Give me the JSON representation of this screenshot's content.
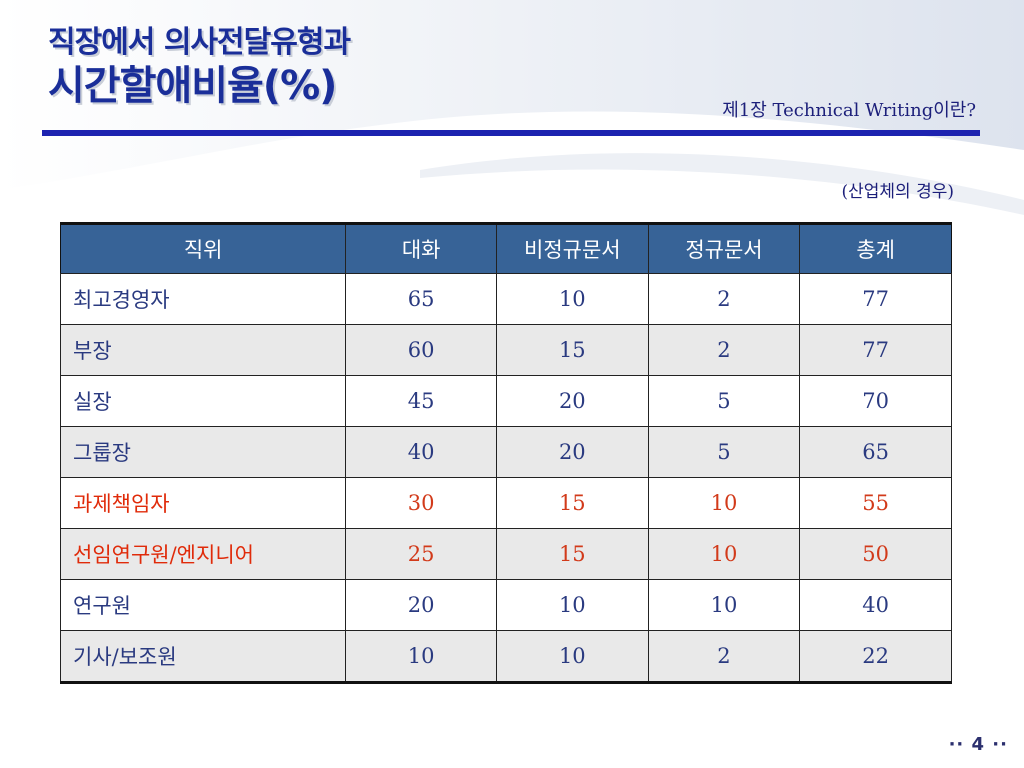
{
  "slide": {
    "title_line1": "직장에서 의사전달유형과",
    "title_line2": "시간할애비율(%)",
    "chapter": "제1장 Technical Writing이란?",
    "note": "(산업체의 경우)",
    "page_number": "·· 4 ··"
  },
  "table": {
    "headers": [
      "직위",
      "대화",
      "비정규문서",
      "정규문서",
      "총계"
    ],
    "rows": [
      [
        "최고경영자",
        "65",
        "10",
        "2",
        "77"
      ],
      [
        "부장",
        "60",
        "15",
        "2",
        "77"
      ],
      [
        "실장",
        "45",
        "20",
        "5",
        "70"
      ],
      [
        "그룹장",
        "40",
        "20",
        "5",
        "65"
      ],
      [
        "과제책임자",
        "30",
        "15",
        "10",
        "55"
      ],
      [
        "선임연구원/엔지니어",
        "25",
        "15",
        "10",
        "50"
      ],
      [
        "연구원",
        "20",
        "10",
        "10",
        "40"
      ],
      [
        "기사/보조원",
        "10",
        "10",
        "2",
        "22"
      ]
    ]
  },
  "colors": {
    "title": "#1a2e99",
    "rule": "#1d23b0",
    "header_bg": "#376397",
    "highlight_text": "#e02b0a",
    "body_text": "#2a3a80"
  }
}
